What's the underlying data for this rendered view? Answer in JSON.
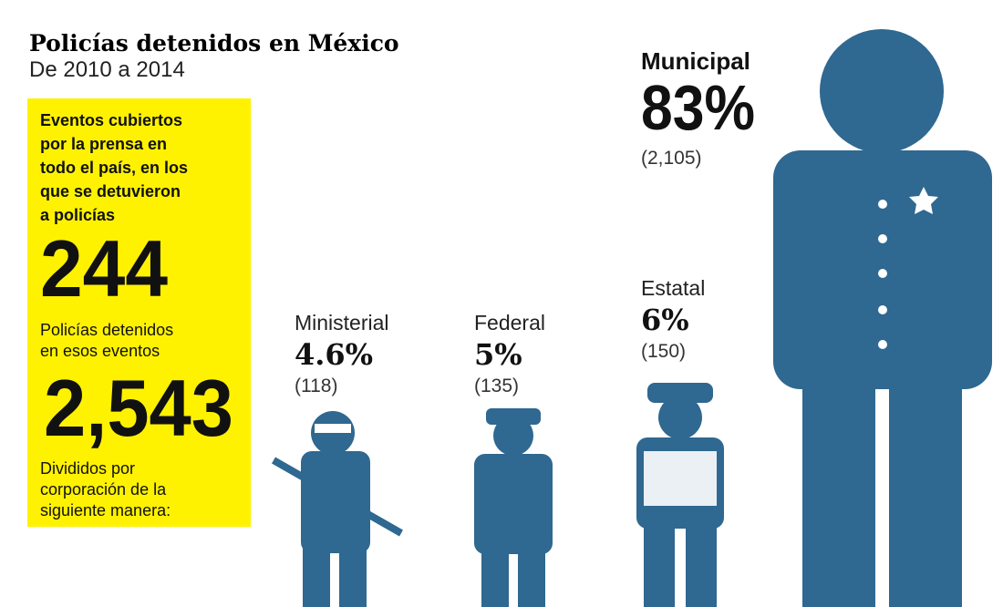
{
  "header": {
    "title": "Policías detenidos en México",
    "subtitle": "De 2010 a 2014"
  },
  "summary": {
    "events_text": [
      "Eventos cubiertos",
      "por la prensa en",
      "todo el país, en los",
      "que se detuvieron",
      "a policías"
    ],
    "events_number": "244",
    "detained_text": [
      "Policías detenidos",
      "en esos eventos"
    ],
    "detained_number": "2,543",
    "split_text": [
      "Divididos por",
      "corporación de la",
      "siguiente manera:"
    ]
  },
  "groups": [
    {
      "name": "Ministerial",
      "percent": "4.6%",
      "count": "(118)"
    },
    {
      "name": "Federal",
      "percent": "5%",
      "count": "(135)"
    },
    {
      "name": "Estatal",
      "percent": "6%",
      "count": "(150)"
    },
    {
      "name": "Municipal",
      "percent": "83%",
      "count": "(2,105)"
    }
  ]
}
